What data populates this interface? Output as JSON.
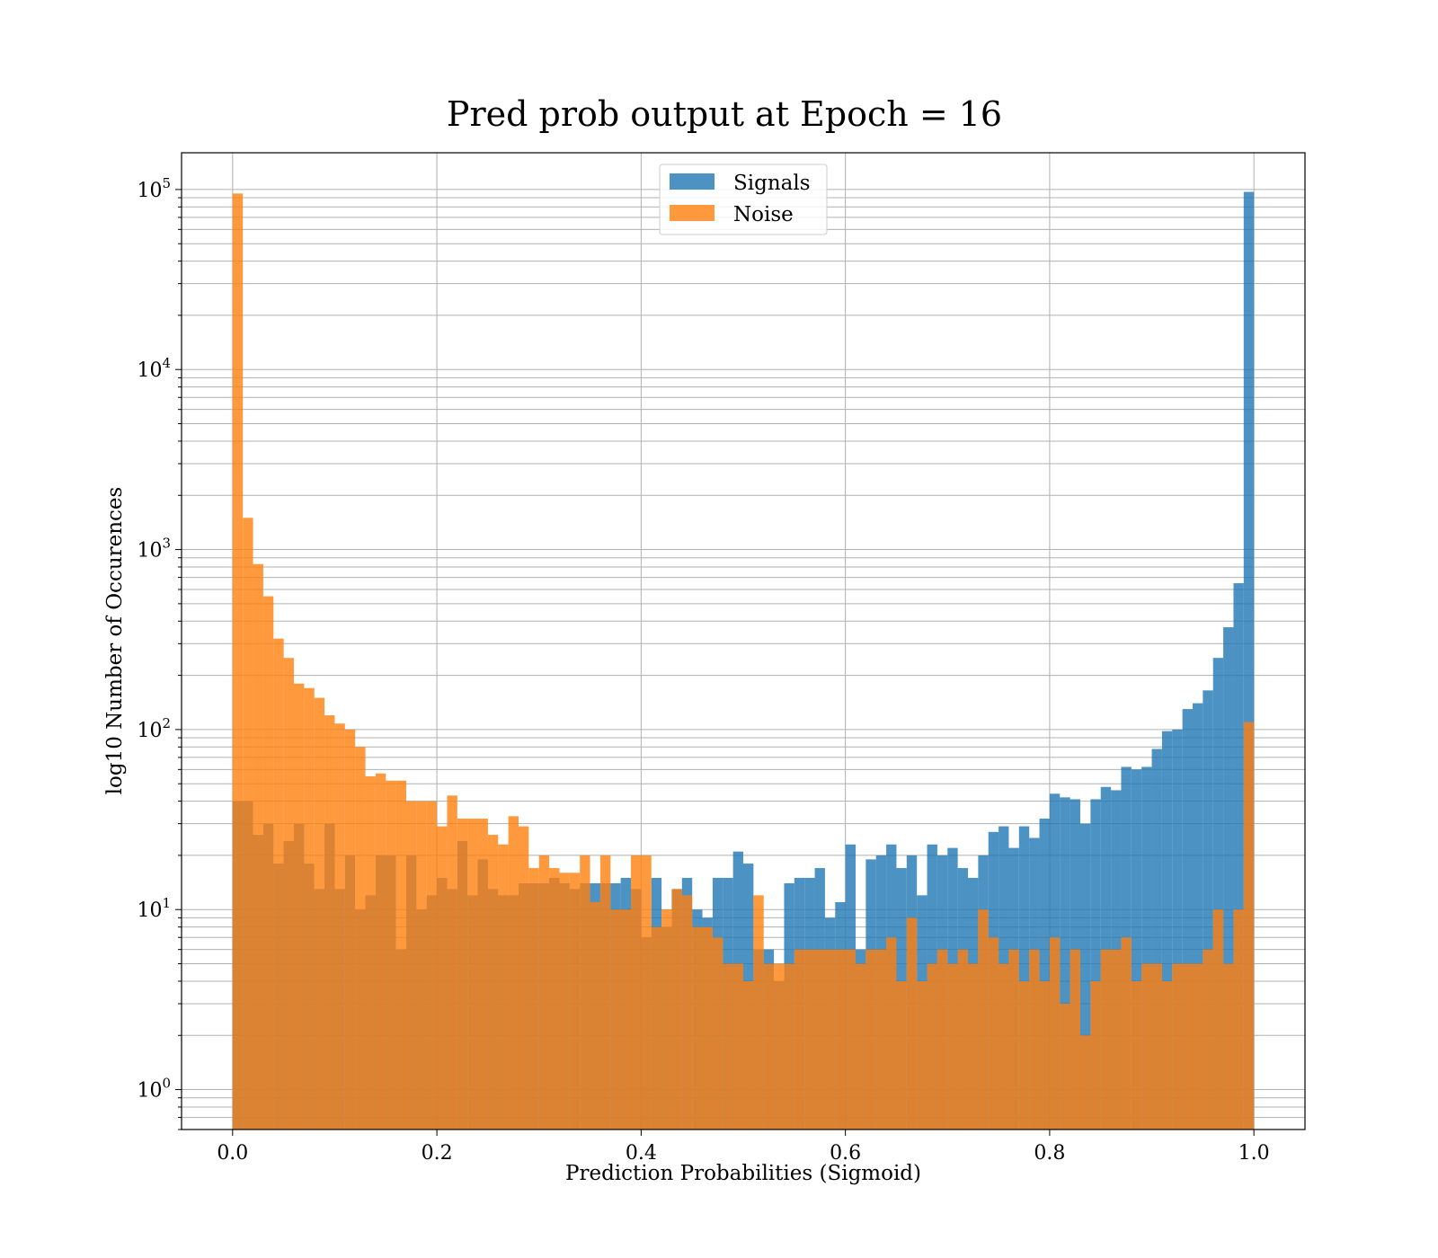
{
  "chart_data": {
    "type": "bar",
    "title": "Pred prob output at Epoch = 16",
    "xlabel": "Prediction Probabilities (Sigmoid)",
    "ylabel": "log10 Number of Occurences",
    "yscale": "log",
    "xlim": [
      -0.05,
      1.05
    ],
    "ylim": [
      0.6,
      160000
    ],
    "grid": true,
    "legend_position": "upper center",
    "x_ticks": [
      "0.0",
      "0.2",
      "0.4",
      "0.6",
      "0.8",
      "1.0"
    ],
    "x_tick_values": [
      0.0,
      0.2,
      0.4,
      0.6,
      0.8,
      1.0
    ],
    "y_ticks": [
      {
        "value": 1,
        "base": "10",
        "exp": "0"
      },
      {
        "value": 10,
        "base": "10",
        "exp": "1"
      },
      {
        "value": 100,
        "base": "10",
        "exp": "2"
      },
      {
        "value": 1000,
        "base": "10",
        "exp": "3"
      },
      {
        "value": 10000,
        "base": "10",
        "exp": "4"
      },
      {
        "value": 100000,
        "base": "10",
        "exp": "5"
      }
    ],
    "bin_edges": {
      "start": 0.0,
      "end": 1.0,
      "count": 100
    },
    "series": [
      {
        "name": "Signals",
        "color": "#1f77b4",
        "opacity": 0.8,
        "values": [
          40,
          40,
          26,
          30,
          18,
          24,
          30,
          18,
          13,
          30,
          13,
          20,
          10,
          12,
          20,
          20,
          6,
          20,
          10,
          12,
          15,
          13,
          24,
          12,
          19,
          13,
          12,
          12,
          14,
          14,
          14,
          15,
          14,
          13,
          14,
          14,
          14,
          14,
          15,
          13,
          7,
          15,
          8,
          13,
          15,
          10,
          9,
          15,
          15,
          21,
          18,
          6,
          6,
          4,
          14,
          15,
          15,
          17,
          9,
          11,
          23,
          6,
          19,
          20,
          23,
          17,
          20,
          12,
          23,
          20,
          22,
          17,
          15,
          20,
          27,
          29,
          22,
          29,
          25,
          32,
          44,
          42,
          41,
          30,
          41,
          48,
          46,
          62,
          60,
          62,
          78,
          98,
          100,
          130,
          140,
          165,
          250,
          370,
          650,
          97000
        ]
      },
      {
        "name": "Noise",
        "color": "#ff7f0e",
        "opacity": 0.8,
        "values": [
          95000,
          1500,
          830,
          550,
          320,
          250,
          180,
          170,
          150,
          120,
          108,
          100,
          80,
          55,
          57,
          52,
          52,
          40,
          40,
          40,
          29,
          43,
          32,
          32,
          32,
          26,
          23,
          33,
          29,
          17,
          20,
          17,
          16,
          16,
          20,
          11,
          20,
          10,
          10,
          20,
          20,
          8,
          10,
          13,
          12,
          8,
          8,
          7,
          5,
          5,
          4,
          12,
          5,
          5,
          5,
          6,
          6,
          6,
          6,
          6,
          6,
          5,
          6,
          6,
          7,
          4,
          9,
          4,
          5,
          6,
          5,
          6,
          5,
          10,
          7,
          5,
          6,
          4,
          6,
          4,
          7,
          3,
          6,
          2,
          4,
          6,
          6,
          7,
          4,
          5,
          5,
          4,
          5,
          5,
          5,
          6,
          10,
          5,
          10,
          110
        ]
      }
    ]
  }
}
